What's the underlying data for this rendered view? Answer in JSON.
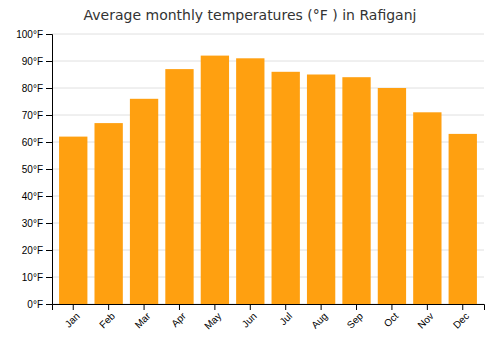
{
  "chart_data": {
    "type": "bar",
    "title": "Average monthly temperatures (°F ) in Rafiganj",
    "categories": [
      "Jan",
      "Feb",
      "Mar",
      "Apr",
      "May",
      "Jun",
      "Jul",
      "Aug",
      "Sep",
      "Oct",
      "Nov",
      "Dec"
    ],
    "values": [
      62,
      67,
      76,
      87,
      92,
      91,
      86,
      85,
      84,
      80,
      71,
      63
    ],
    "color": "#FFA010",
    "ylim": [
      0,
      100
    ],
    "yticks": [
      {
        "value": 0,
        "label": "0°F"
      },
      {
        "value": 10,
        "label": "10°F"
      },
      {
        "value": 20,
        "label": "20°F"
      },
      {
        "value": 30,
        "label": "30°F"
      },
      {
        "value": 40,
        "label": "40°F"
      },
      {
        "value": 50,
        "label": "50°F"
      },
      {
        "value": 60,
        "label": "60°F"
      },
      {
        "value": 70,
        "label": "70°F"
      },
      {
        "value": 80,
        "label": "80°F"
      },
      {
        "value": 90,
        "label": "90°F"
      },
      {
        "value": 100,
        "label": "100°F"
      }
    ],
    "grid": true
  }
}
